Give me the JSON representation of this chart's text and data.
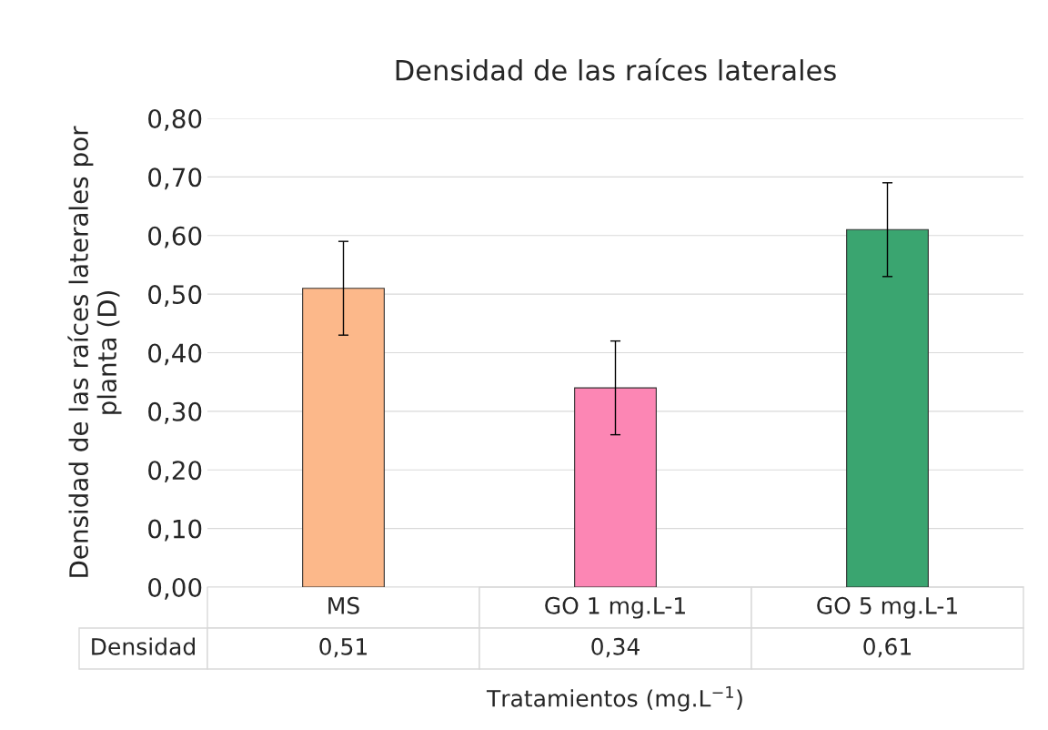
{
  "chart_data": {
    "type": "bar",
    "title": "Densidad de las raíces laterales",
    "xlabel": "Tratamientos (mg.L$^{−1}$)",
    "ylabel": "Densidad de las raíces laterales por\nplanta (D)",
    "categories": [
      "MS",
      "GO 1 mg.L-1",
      "GO 5 mg.L-1"
    ],
    "series": [
      {
        "name": "Densidad",
        "colors": [
          "#fcb88a",
          "#fc86b4",
          "#3aa570"
        ],
        "values": [
          0.51,
          0.34,
          0.61
        ],
        "errors": [
          0.08,
          0.08,
          0.08
        ],
        "value_labels": [
          "0,51",
          "0,34",
          "0,61"
        ]
      }
    ],
    "ylim": [
      0,
      0.8
    ],
    "yticks": [
      {
        "value": 0,
        "label": "0,00"
      },
      {
        "value": 0.1,
        "label": "0,10"
      },
      {
        "value": 0.2,
        "label": "0,20"
      },
      {
        "value": 0.3,
        "label": "0,30"
      },
      {
        "value": 0.4,
        "label": "0,40"
      },
      {
        "value": 0.5,
        "label": "0,50"
      },
      {
        "value": 0.6,
        "label": "0,60"
      },
      {
        "value": 0.7,
        "label": "0,70"
      },
      {
        "value": 0.8,
        "label": "0,80"
      }
    ],
    "grid": "y"
  }
}
